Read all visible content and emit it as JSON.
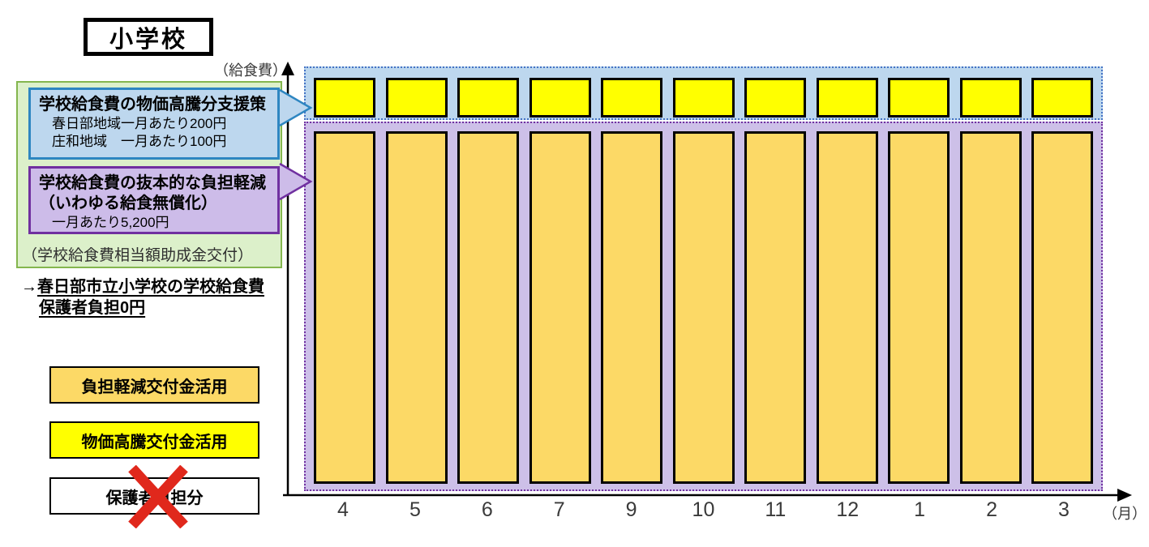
{
  "title": "小学校",
  "y_axis_label": "（給食費）",
  "x_axis_unit": "（月）",
  "info_panel": {
    "price_support_callout": {
      "title": "学校給食費の物価高騰分支援策",
      "line1": "春日部地域一月あたり200円",
      "line2": "庄和地域　一月あたり100円"
    },
    "burden_reduction_callout": {
      "title_line1": "学校給食費の抜本的な負担軽減",
      "title_line2": "（いわゆる給食無償化）",
      "detail": "一月あたり5,200円"
    },
    "caption": "（学校給食費相当額助成金交付）"
  },
  "result_note": {
    "arrow": "→",
    "line1": "春日部市立小学校の学校給食費",
    "line2": "保護者負担0円"
  },
  "legend": [
    {
      "label": "負担軽減交付金活用",
      "color": "#fcd966",
      "crossed_out": false
    },
    {
      "label": "物価高騰交付金活用",
      "color": "#ffff00",
      "crossed_out": false
    },
    {
      "label": "保護者負担分",
      "color": "#ffffff",
      "crossed_out": true
    }
  ],
  "chart_data": {
    "type": "bar",
    "stacked": true,
    "title": "小学校",
    "ylabel": "（給食費）",
    "xlabel": "（月）",
    "categories": [
      "4",
      "5",
      "6",
      "7",
      "9",
      "10",
      "11",
      "12",
      "1",
      "2",
      "3"
    ],
    "series": [
      {
        "name": "物価高騰交付金活用",
        "color": "#ffff00",
        "band_color": "#bdd7ee",
        "values_yen_per_month": [
          200,
          200,
          200,
          200,
          200,
          200,
          200,
          200,
          200,
          200,
          200
        ],
        "detail": "春日部地域200円・庄和地域100円（一月あたり）"
      },
      {
        "name": "負担軽減交付金活用",
        "color": "#fcd966",
        "band_color": "#cdc0e8",
        "values_yen_per_month": [
          5200,
          5200,
          5200,
          5200,
          5200,
          5200,
          5200,
          5200,
          5200,
          5200,
          5200
        ],
        "detail": "一月あたり5,200円"
      },
      {
        "name": "保護者負担分",
        "color": "#ffffff",
        "values_yen_per_month": [
          0,
          0,
          0,
          0,
          0,
          0,
          0,
          0,
          0,
          0,
          0
        ],
        "crossed_out": true
      }
    ],
    "legend_position": "bottom-left",
    "grid": false
  },
  "colors": {
    "price_band_fill": "#bdd7ee",
    "price_band_border": "#4472c4",
    "subsidy_band_fill": "#cdc0e8",
    "subsidy_band_border": "#7030a0",
    "green_panel_fill": "#dcf0ca",
    "green_panel_border": "#84b64e",
    "blue_callout_border": "#2e86c1",
    "purple_callout_fill": "#cdbce9",
    "purple_callout_border": "#7030a0",
    "cross_red": "#e0281c",
    "axis_black": "#000000"
  }
}
